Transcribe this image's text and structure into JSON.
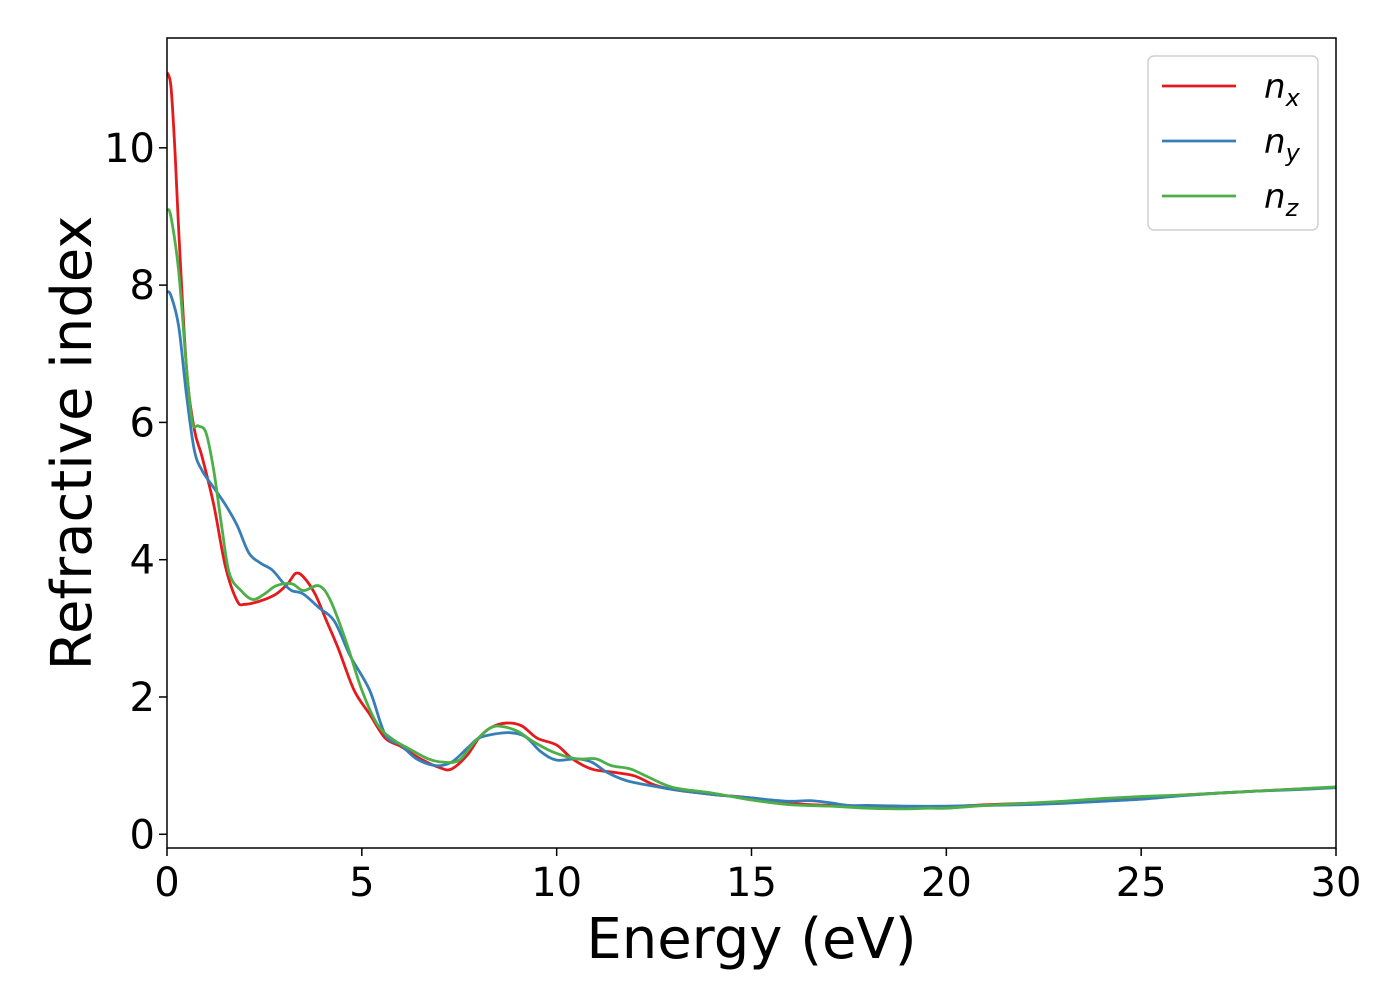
{
  "chart_data": {
    "type": "line",
    "xlabel": "Energy (eV)",
    "ylabel": "Refractive index",
    "xlim": [
      0,
      30
    ],
    "ylim": [
      -0.2,
      11.6
    ],
    "xticks": [
      0,
      5,
      10,
      15,
      20,
      25,
      30
    ],
    "xtick_labels": [
      "0",
      "5",
      "10",
      "15",
      "20",
      "25",
      "30"
    ],
    "yticks": [
      0,
      2,
      4,
      6,
      8,
      10
    ],
    "ytick_labels": [
      "0",
      "2",
      "4",
      "6",
      "8",
      "10"
    ],
    "grid": false,
    "legend": "top-right",
    "series": [
      {
        "name": "n",
        "sub": "x",
        "color": "#e41a1c",
        "points": [
          [
            0,
            11.1
          ],
          [
            0.1,
            10.9
          ],
          [
            0.2,
            10.0
          ],
          [
            0.3,
            8.8
          ],
          [
            0.5,
            6.8
          ],
          [
            0.7,
            5.9
          ],
          [
            0.9,
            5.5
          ],
          [
            1.2,
            4.8
          ],
          [
            1.5,
            3.9
          ],
          [
            1.8,
            3.4
          ],
          [
            2.0,
            3.35
          ],
          [
            2.4,
            3.4
          ],
          [
            2.8,
            3.5
          ],
          [
            3.1,
            3.65
          ],
          [
            3.3,
            3.8
          ],
          [
            3.5,
            3.75
          ],
          [
            3.8,
            3.5
          ],
          [
            4.1,
            3.1
          ],
          [
            4.4,
            2.7
          ],
          [
            4.8,
            2.1
          ],
          [
            5.2,
            1.75
          ],
          [
            5.6,
            1.4
          ],
          [
            6.0,
            1.28
          ],
          [
            6.5,
            1.1
          ],
          [
            7.0,
            0.97
          ],
          [
            7.3,
            0.95
          ],
          [
            7.7,
            1.15
          ],
          [
            8.0,
            1.4
          ],
          [
            8.3,
            1.55
          ],
          [
            8.7,
            1.62
          ],
          [
            9.1,
            1.58
          ],
          [
            9.5,
            1.4
          ],
          [
            10.0,
            1.3
          ],
          [
            10.4,
            1.1
          ],
          [
            10.9,
            0.95
          ],
          [
            11.5,
            0.9
          ],
          [
            12.0,
            0.85
          ],
          [
            12.5,
            0.72
          ],
          [
            13.0,
            0.65
          ],
          [
            14.0,
            0.58
          ],
          [
            15.0,
            0.53
          ],
          [
            16.0,
            0.45
          ],
          [
            17.0,
            0.42
          ],
          [
            18.0,
            0.4
          ],
          [
            19.0,
            0.39
          ],
          [
            20.0,
            0.4
          ],
          [
            21.0,
            0.43
          ],
          [
            22.0,
            0.45
          ],
          [
            23.0,
            0.47
          ],
          [
            24.0,
            0.5
          ],
          [
            25.0,
            0.53
          ],
          [
            26.0,
            0.57
          ],
          [
            27.0,
            0.6
          ],
          [
            28.0,
            0.63
          ],
          [
            29.0,
            0.66
          ],
          [
            30.0,
            0.68
          ]
        ]
      },
      {
        "name": "n",
        "sub": "y",
        "color": "#377eb8",
        "points": [
          [
            0,
            7.9
          ],
          [
            0.1,
            7.85
          ],
          [
            0.3,
            7.4
          ],
          [
            0.5,
            6.4
          ],
          [
            0.7,
            5.6
          ],
          [
            0.9,
            5.3
          ],
          [
            1.2,
            5.05
          ],
          [
            1.5,
            4.8
          ],
          [
            1.8,
            4.5
          ],
          [
            2.1,
            4.1
          ],
          [
            2.4,
            3.95
          ],
          [
            2.7,
            3.85
          ],
          [
            3.0,
            3.65
          ],
          [
            3.2,
            3.55
          ],
          [
            3.5,
            3.5
          ],
          [
            3.9,
            3.3
          ],
          [
            4.3,
            3.1
          ],
          [
            4.7,
            2.6
          ],
          [
            5.2,
            2.1
          ],
          [
            5.6,
            1.45
          ],
          [
            6.0,
            1.3
          ],
          [
            6.4,
            1.1
          ],
          [
            6.9,
            1.0
          ],
          [
            7.3,
            1.05
          ],
          [
            7.7,
            1.25
          ],
          [
            8.0,
            1.4
          ],
          [
            8.4,
            1.46
          ],
          [
            8.8,
            1.48
          ],
          [
            9.2,
            1.42
          ],
          [
            9.6,
            1.2
          ],
          [
            10.0,
            1.08
          ],
          [
            10.5,
            1.1
          ],
          [
            10.9,
            1.05
          ],
          [
            11.3,
            0.9
          ],
          [
            11.8,
            0.78
          ],
          [
            12.5,
            0.7
          ],
          [
            13.0,
            0.65
          ],
          [
            14.0,
            0.58
          ],
          [
            15.0,
            0.53
          ],
          [
            15.5,
            0.5
          ],
          [
            16.0,
            0.48
          ],
          [
            16.5,
            0.49
          ],
          [
            17.0,
            0.46
          ],
          [
            17.5,
            0.42
          ],
          [
            18.0,
            0.42
          ],
          [
            19.0,
            0.41
          ],
          [
            20.0,
            0.41
          ],
          [
            21.0,
            0.42
          ],
          [
            22.0,
            0.43
          ],
          [
            23.0,
            0.45
          ],
          [
            24.0,
            0.48
          ],
          [
            25.0,
            0.51
          ],
          [
            26.0,
            0.56
          ],
          [
            27.0,
            0.6
          ],
          [
            28.0,
            0.63
          ],
          [
            29.0,
            0.65
          ],
          [
            30.0,
            0.68
          ]
        ]
      },
      {
        "name": "n",
        "sub": "z",
        "color": "#4daf4a",
        "points": [
          [
            0,
            9.1
          ],
          [
            0.1,
            9.0
          ],
          [
            0.3,
            8.2
          ],
          [
            0.5,
            6.8
          ],
          [
            0.65,
            6.0
          ],
          [
            0.8,
            5.95
          ],
          [
            1.0,
            5.85
          ],
          [
            1.2,
            5.3
          ],
          [
            1.4,
            4.5
          ],
          [
            1.6,
            3.8
          ],
          [
            1.9,
            3.55
          ],
          [
            2.2,
            3.42
          ],
          [
            2.5,
            3.5
          ],
          [
            2.8,
            3.62
          ],
          [
            3.2,
            3.65
          ],
          [
            3.5,
            3.55
          ],
          [
            3.9,
            3.62
          ],
          [
            4.2,
            3.4
          ],
          [
            4.6,
            2.8
          ],
          [
            5.0,
            2.1
          ],
          [
            5.4,
            1.6
          ],
          [
            5.8,
            1.38
          ],
          [
            6.2,
            1.25
          ],
          [
            6.7,
            1.1
          ],
          [
            7.1,
            1.05
          ],
          [
            7.5,
            1.08
          ],
          [
            7.9,
            1.35
          ],
          [
            8.3,
            1.55
          ],
          [
            8.6,
            1.57
          ],
          [
            9.0,
            1.5
          ],
          [
            9.4,
            1.35
          ],
          [
            9.9,
            1.2
          ],
          [
            10.5,
            1.1
          ],
          [
            11.0,
            1.1
          ],
          [
            11.4,
            1.0
          ],
          [
            11.9,
            0.95
          ],
          [
            12.4,
            0.82
          ],
          [
            13.0,
            0.68
          ],
          [
            14.0,
            0.6
          ],
          [
            15.0,
            0.5
          ],
          [
            16.0,
            0.43
          ],
          [
            17.0,
            0.41
          ],
          [
            18.0,
            0.38
          ],
          [
            19.0,
            0.37
          ],
          [
            19.5,
            0.38
          ],
          [
            20.0,
            0.38
          ],
          [
            21.0,
            0.42
          ],
          [
            22.0,
            0.45
          ],
          [
            23.0,
            0.48
          ],
          [
            24.0,
            0.52
          ],
          [
            25.0,
            0.55
          ],
          [
            26.0,
            0.57
          ],
          [
            27.0,
            0.6
          ],
          [
            28.0,
            0.63
          ],
          [
            29.0,
            0.66
          ],
          [
            30.0,
            0.69
          ]
        ]
      }
    ]
  }
}
